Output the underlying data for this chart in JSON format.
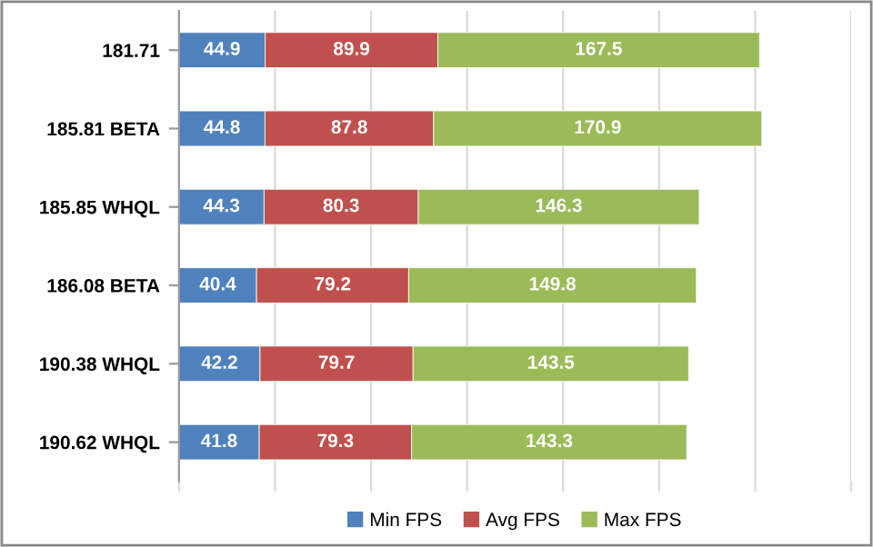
{
  "chart_data": {
    "type": "bar",
    "orientation": "horizontal",
    "stacked": true,
    "data_labels": true,
    "categories": [
      "181.71",
      "185.81 BETA",
      "185.85 WHQL",
      "186.08 BETA",
      "190.38 WHQL",
      "190.62 WHQL"
    ],
    "series": [
      {
        "name": "Min FPS",
        "color": "#4f81bd",
        "values": [
          44.9,
          44.8,
          44.3,
          40.4,
          42.2,
          41.8
        ]
      },
      {
        "name": "Avg FPS",
        "color": "#c0504d",
        "values": [
          89.9,
          87.8,
          80.3,
          79.2,
          79.7,
          79.3
        ]
      },
      {
        "name": "Max FPS",
        "color": "#9bbb59",
        "values": [
          167.5,
          170.9,
          146.3,
          149.8,
          143.5,
          143.3
        ]
      }
    ],
    "xlim": [
      0,
      350
    ],
    "xticks": [
      {
        "value": 0,
        "label": null
      },
      {
        "value": 50,
        "label": null
      },
      {
        "value": 100,
        "label": null
      },
      {
        "value": 150,
        "label": null
      },
      {
        "value": 200,
        "label": null
      },
      {
        "value": 250,
        "label": null
      },
      {
        "value": 300,
        "label": null
      },
      {
        "value": 350,
        "label": null
      }
    ],
    "tick_labels": "y",
    "grid": "x",
    "legend": "bottom"
  }
}
